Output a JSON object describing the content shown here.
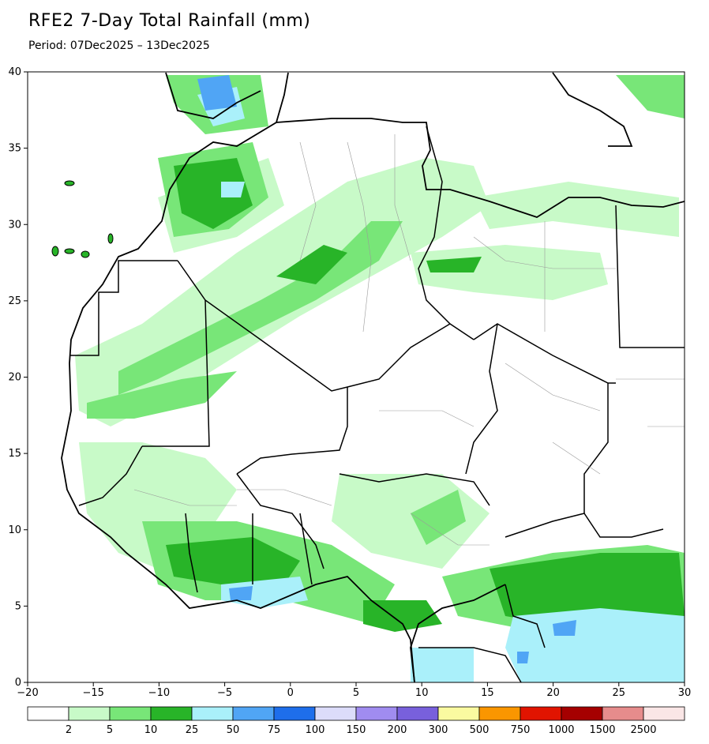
{
  "title": "RFE2 7-Day Total Rainfall (mm)",
  "subtitle": "Period: 07Dec2025 – 13Dec2025",
  "map": {
    "lon_range": [
      -20,
      30
    ],
    "lat_range": [
      0,
      40
    ],
    "x_ticks": [
      "−20",
      "−15",
      "−10",
      "−5",
      "0",
      "5",
      "10",
      "15",
      "20",
      "25",
      "30"
    ],
    "y_ticks": [
      "0",
      "5",
      "10",
      "15",
      "20",
      "25",
      "30",
      "35",
      "40"
    ],
    "land_color": "#ffffff",
    "border_color": "#000000"
  },
  "colorbar": {
    "labels": [
      "2",
      "5",
      "10",
      "25",
      "50",
      "75",
      "100",
      "150",
      "200",
      "300",
      "500",
      "750",
      "1000",
      "1500",
      "2500"
    ],
    "colors": [
      "#ffffff",
      "#c8fac8",
      "#78e678",
      "#28b428",
      "#aaf0fa",
      "#50a5f5",
      "#1e6eeb",
      "#dcdcfa",
      "#a08cf0",
      "#7860dc",
      "#fafaa0",
      "#fa9600",
      "#e11400",
      "#a50000",
      "#e68c8c",
      "#fae6e6"
    ]
  }
}
